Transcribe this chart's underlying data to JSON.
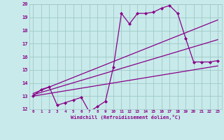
{
  "title": "",
  "xlabel": "Windchill (Refroidissement éolien,°C)",
  "ylabel": "",
  "xlim": [
    -0.5,
    23.5
  ],
  "ylim": [
    12,
    20
  ],
  "yticks": [
    12,
    13,
    14,
    15,
    16,
    17,
    18,
    19,
    20
  ],
  "xticks": [
    0,
    1,
    2,
    3,
    4,
    5,
    6,
    7,
    8,
    9,
    10,
    11,
    12,
    13,
    14,
    15,
    16,
    17,
    18,
    19,
    20,
    21,
    22,
    23
  ],
  "bg_color": "#c8eaea",
  "grid_color": "#a0c8c8",
  "line_color": "#880088",
  "marker_color": "#880088",
  "line1_x": [
    0,
    1,
    2,
    3,
    4,
    5,
    6,
    7,
    8,
    9,
    10,
    11,
    12,
    13,
    14,
    15,
    16,
    17,
    18,
    19,
    20,
    21,
    22,
    23
  ],
  "line1_y": [
    13.0,
    13.5,
    13.7,
    12.3,
    12.5,
    12.7,
    12.9,
    11.8,
    12.2,
    12.6,
    15.2,
    19.3,
    18.5,
    19.3,
    19.3,
    19.4,
    19.7,
    19.9,
    19.3,
    17.4,
    15.6,
    15.6,
    15.6,
    15.7
  ],
  "line2_x": [
    0,
    23
  ],
  "line2_y": [
    13.0,
    15.3
  ],
  "line3_x": [
    0,
    23
  ],
  "line3_y": [
    13.1,
    17.3
  ],
  "line4_x": [
    0,
    23
  ],
  "line4_y": [
    13.2,
    18.8
  ]
}
